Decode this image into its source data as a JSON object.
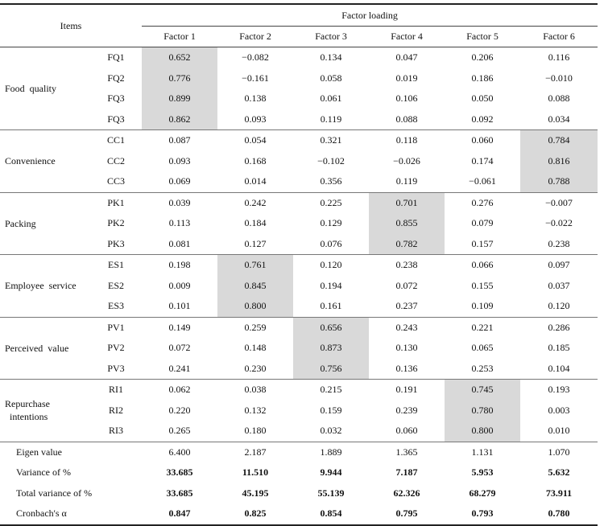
{
  "header": {
    "items": "Items",
    "factor_loading": "Factor  loading",
    "factors": [
      "Factor  1",
      "Factor  2",
      "Factor  3",
      "Factor  4",
      "Factor  5",
      "Factor  6"
    ]
  },
  "groups": [
    {
      "name": "Food  quality",
      "rows": [
        {
          "code": "FQ1",
          "values": [
            "0.652",
            "−0.082",
            "0.134",
            "0.047",
            "0.206",
            "0.116"
          ],
          "highlight": 0
        },
        {
          "code": "FQ2",
          "values": [
            "0.776",
            "−0.161",
            "0.058",
            "0.019",
            "0.186",
            "−0.010"
          ],
          "highlight": 0
        },
        {
          "code": "FQ3",
          "values": [
            "0.899",
            "0.138",
            "0.061",
            "0.106",
            "0.050",
            "0.088"
          ],
          "highlight": 0
        },
        {
          "code": "FQ3",
          "values": [
            "0.862",
            "0.093",
            "0.119",
            "0.088",
            "0.092",
            "0.034"
          ],
          "highlight": 0
        }
      ]
    },
    {
      "name": "Convenience",
      "rows": [
        {
          "code": "CC1",
          "values": [
            "0.087",
            "0.054",
            "0.321",
            "0.118",
            "0.060",
            "0.784"
          ],
          "highlight": 5
        },
        {
          "code": "CC2",
          "values": [
            "0.093",
            "0.168",
            "−0.102",
            "−0.026",
            "0.174",
            "0.816"
          ],
          "highlight": 5
        },
        {
          "code": "CC3",
          "values": [
            "0.069",
            "0.014",
            "0.356",
            "0.119",
            "−0.061",
            "0.788"
          ],
          "highlight": 5
        }
      ]
    },
    {
      "name": "Packing",
      "rows": [
        {
          "code": "PK1",
          "values": [
            "0.039",
            "0.242",
            "0.225",
            "0.701",
            "0.276",
            "−0.007"
          ],
          "highlight": 3
        },
        {
          "code": "PK2",
          "values": [
            "0.113",
            "0.184",
            "0.129",
            "0.855",
            "0.079",
            "−0.022"
          ],
          "highlight": 3
        },
        {
          "code": "PK3",
          "values": [
            "0.081",
            "0.127",
            "0.076",
            "0.782",
            "0.157",
            "0.238"
          ],
          "highlight": 3
        }
      ]
    },
    {
      "name": "Employee  service",
      "rows": [
        {
          "code": "ES1",
          "values": [
            "0.198",
            "0.761",
            "0.120",
            "0.238",
            "0.066",
            "0.097"
          ],
          "highlight": 1
        },
        {
          "code": "ES2",
          "values": [
            "0.009",
            "0.845",
            "0.194",
            "0.072",
            "0.155",
            "0.037"
          ],
          "highlight": 1
        },
        {
          "code": "ES3",
          "values": [
            "0.101",
            "0.800",
            "0.161",
            "0.237",
            "0.109",
            "0.120"
          ],
          "highlight": 1
        }
      ]
    },
    {
      "name": "Perceived  value",
      "rows": [
        {
          "code": "PV1",
          "values": [
            "0.149",
            "0.259",
            "0.656",
            "0.243",
            "0.221",
            "0.286"
          ],
          "highlight": 2
        },
        {
          "code": "PV2",
          "values": [
            "0.072",
            "0.148",
            "0.873",
            "0.130",
            "0.065",
            "0.185"
          ],
          "highlight": 2
        },
        {
          "code": "PV3",
          "values": [
            "0.241",
            "0.230",
            "0.756",
            "0.136",
            "0.253",
            "0.104"
          ],
          "highlight": 2
        }
      ]
    },
    {
      "name": "Repurchase\n  intentions",
      "rows": [
        {
          "code": "RI1",
          "values": [
            "0.062",
            "0.038",
            "0.215",
            "0.191",
            "0.745",
            "0.193"
          ],
          "highlight": 4
        },
        {
          "code": "RI2",
          "values": [
            "0.220",
            "0.132",
            "0.159",
            "0.239",
            "0.780",
            "0.003"
          ],
          "highlight": 4
        },
        {
          "code": "RI3",
          "values": [
            "0.265",
            "0.180",
            "0.032",
            "0.060",
            "0.800",
            "0.010"
          ],
          "highlight": 4
        }
      ]
    }
  ],
  "stats": [
    {
      "label": "Eigen  value",
      "values": [
        "6.400",
        "2.187",
        "1.889",
        "1.365",
        "1.131",
        "1.070"
      ],
      "bold": false
    },
    {
      "label": "Variance  of  %",
      "values": [
        "33.685",
        "11.510",
        "9.944",
        "7.187",
        "5.953",
        "5.632"
      ],
      "bold": true
    },
    {
      "label": "Total  variance  of  %",
      "values": [
        "33.685",
        "45.195",
        "55.139",
        "62.326",
        "68.279",
        "73.911"
      ],
      "bold": true
    },
    {
      "label": "Cronbach's  α",
      "values": [
        "0.847",
        "0.825",
        "0.854",
        "0.795",
        "0.793",
        "0.780"
      ],
      "bold": true
    }
  ]
}
